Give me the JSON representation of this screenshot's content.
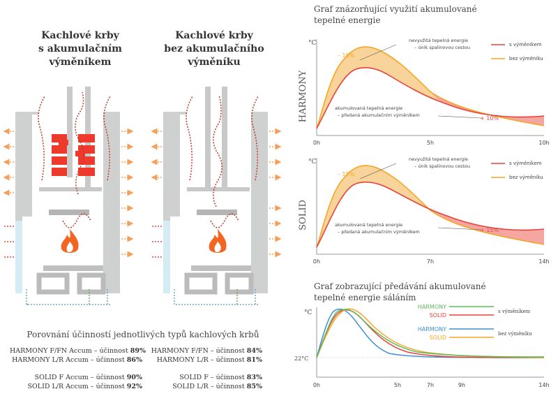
{
  "left": {
    "diagram1_title": [
      "Kachlové krby",
      "s akumulačním",
      "výměníkem"
    ],
    "diagram2_title": [
      "Kachlové krby",
      "bez akumulačního",
      "výměníku"
    ],
    "comparison_title": "Porovnání účinností jednotlivých typů kachlových krbů",
    "efficiency_left": [
      {
        "name": "HARMONY F/FN Accum – účinnost",
        "value": "89%"
      },
      {
        "name": "HARMONY L/R Accum – účinnost",
        "value": "86%"
      },
      {
        "name": "SOLID F Accum – účinnost",
        "value": "90%"
      },
      {
        "name": "SOLID L/R Accum – účinnost",
        "value": "92%"
      }
    ],
    "efficiency_right": [
      {
        "name": "HARMONY F/FN – účinnost",
        "value": "84%"
      },
      {
        "name": "HARMONY L/R – účinnost",
        "value": "81%"
      },
      {
        "name": "SOLID F – účinnost",
        "value": "83%"
      },
      {
        "name": "SOLID L/R – účinnost",
        "value": "85%"
      }
    ]
  },
  "right": {
    "title1": [
      "Graf znázorňující využití akumulované",
      "tepelné energie"
    ],
    "title2": [
      "Graf zobrazující předávání akumulované",
      "tepelné energie sáláním"
    ]
  },
  "colors": {
    "red": "#e8433a",
    "orange": "#f5a623",
    "green": "#5cb85c",
    "blue": "#3d8fd1",
    "orange_fill": "#f9d49a",
    "red_fill": "#f5a6a0",
    "gray": "#cfd0d0",
    "brick": "#ee3a2c",
    "flame": "#f26522"
  },
  "chart_data": [
    {
      "type": "area",
      "ylabel_side": "HARMONY",
      "yunit": "°C",
      "xticks": [
        "0h",
        "5h",
        "10h"
      ],
      "legend": [
        {
          "name": "s výměníkem",
          "color": "#e8433a"
        },
        {
          "name": "bez výměníku",
          "color": "#f5a623"
        }
      ],
      "annotations": {
        "top": [
          "nevyužitá tepelná energie",
          "– únik spalinovou cestou"
        ],
        "bottom": [
          "akumulovaná tepelná energie",
          "– předaná akumulačním výměníkem"
        ],
        "top_pct": "– 10%",
        "bottom_pct": "+ 10%"
      }
    },
    {
      "type": "area",
      "ylabel_side": "SOLID",
      "yunit": "°C",
      "xticks": [
        "0h",
        "7h",
        "14h"
      ],
      "legend": [
        {
          "name": "s výměníkem",
          "color": "#e8433a"
        },
        {
          "name": "bez výměníku",
          "color": "#f5a623"
        }
      ],
      "annotations": {
        "top": [
          "nevyužitá tepelná energie",
          "– únik spalinovou cestou"
        ],
        "bottom": [
          "akumulovaná tepelná energie",
          "– předaná akumulačním výměníkem"
        ],
        "top_pct": "– 15%",
        "bottom_pct": "+ 15%"
      }
    },
    {
      "type": "line",
      "yunit": "°C",
      "ybase": "22°C",
      "xticks": [
        "0h",
        "5h",
        "7h",
        "9h",
        "14h"
      ],
      "legend_with": {
        "label": "s výměníkem",
        "series": [
          {
            "name": "HARMONY",
            "color": "#5cb85c"
          },
          {
            "name": "SOLID",
            "color": "#e8433a"
          }
        ]
      },
      "legend_without": {
        "label": "bez výměníku",
        "series": [
          {
            "name": "HARMONY",
            "color": "#3d8fd1"
          },
          {
            "name": "SOLID",
            "color": "#f5a623"
          }
        ]
      }
    }
  ]
}
